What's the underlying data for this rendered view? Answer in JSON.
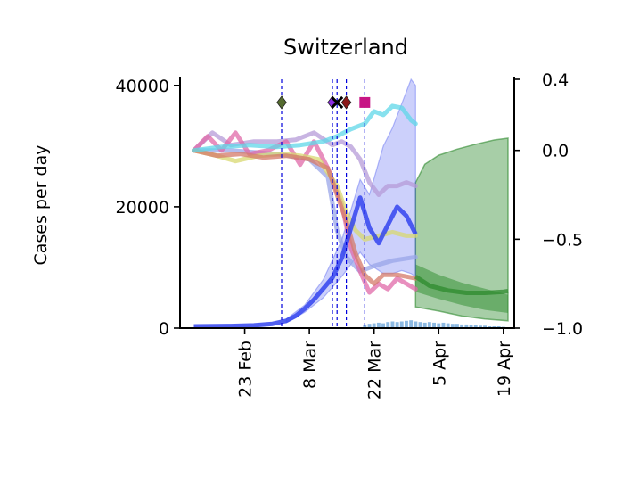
{
  "chart_data": {
    "type": "line",
    "title": "Switzerland",
    "ylabel": "Cases per day",
    "ylim": [
      0,
      41000
    ],
    "y_ticks": [
      0,
      20000,
      40000
    ],
    "y_tick_labels": [
      "0",
      "20000",
      "40000"
    ],
    "y2lim": [
      -1.0,
      0.4
    ],
    "y2_ticks": [
      -1.0,
      -0.5,
      0.0,
      0.4
    ],
    "y2_tick_labels": [
      "−1.0",
      "−0.5",
      "0.0",
      "0.4"
    ],
    "xlim": [
      "2020-02-09",
      "2020-04-20"
    ],
    "x_ticks": [
      "2020-02-23",
      "2020-03-08",
      "2020-03-22",
      "2020-04-05",
      "2020-04-19"
    ],
    "x_tick_labels": [
      "23 Feb",
      "8 Mar",
      "22 Mar",
      "5 Apr",
      "19 Apr"
    ],
    "grid": false,
    "event_lines": [
      "2020-03-02",
      "2020-03-13",
      "2020-03-14",
      "2020-03-16",
      "2020-03-20"
    ],
    "event_markers": [
      {
        "date": "2020-03-02",
        "y": 0.27,
        "shape": "diamond",
        "color": "#556b2f"
      },
      {
        "date": "2020-03-13",
        "y": 0.27,
        "shape": "diamond",
        "color": "#8a2be2"
      },
      {
        "date": "2020-03-14",
        "y": 0.27,
        "shape": "x",
        "color": "#000000"
      },
      {
        "date": "2020-03-16",
        "y": 0.27,
        "shape": "diamond",
        "color": "#8b1a1a"
      },
      {
        "date": "2020-03-20",
        "y": 0.27,
        "shape": "square",
        "color": "#c71585"
      }
    ],
    "cases": {
      "color": "#3344ee",
      "points": [
        [
          "2020-02-12",
          300
        ],
        [
          "2020-02-20",
          350
        ],
        [
          "2020-02-25",
          450
        ],
        [
          "2020-02-29",
          700
        ],
        [
          "2020-03-03",
          1200
        ],
        [
          "2020-03-05",
          2000
        ],
        [
          "2020-03-07",
          3200
        ],
        [
          "2020-03-09",
          4700
        ],
        [
          "2020-03-11",
          6500
        ],
        [
          "2020-03-13",
          8300
        ],
        [
          "2020-03-15",
          11500
        ],
        [
          "2020-03-17",
          16500
        ],
        [
          "2020-03-19",
          21500
        ],
        [
          "2020-03-21",
          16500
        ],
        [
          "2020-03-23",
          14000
        ],
        [
          "2020-03-25",
          17000
        ],
        [
          "2020-03-27",
          20000
        ],
        [
          "2020-03-29",
          18500
        ],
        [
          "2020-03-31",
          15500
        ]
      ],
      "band_upper": [
        [
          "2020-03-03",
          1500
        ],
        [
          "2020-03-07",
          3800
        ],
        [
          "2020-03-11",
          8000
        ],
        [
          "2020-03-15",
          14500
        ],
        [
          "2020-03-19",
          24500
        ],
        [
          "2020-03-21",
          22000
        ],
        [
          "2020-03-24",
          30000
        ],
        [
          "2020-03-26",
          33000
        ],
        [
          "2020-03-28",
          37000
        ],
        [
          "2020-03-30",
          41000
        ],
        [
          "2020-03-31",
          40000
        ]
      ],
      "band_lower": [
        [
          "2020-03-03",
          900
        ],
        [
          "2020-03-07",
          2600
        ],
        [
          "2020-03-11",
          5000
        ],
        [
          "2020-03-15",
          8500
        ],
        [
          "2020-03-19",
          12500
        ],
        [
          "2020-03-21",
          10500
        ],
        [
          "2020-03-24",
          9000
        ],
        [
          "2020-03-26",
          9000
        ],
        [
          "2020-03-28",
          9500
        ],
        [
          "2020-03-30",
          9000
        ],
        [
          "2020-03-31",
          8500
        ]
      ]
    },
    "forecast": {
      "color": "#2e8b2e",
      "median": [
        [
          "2020-03-31",
          8500
        ],
        [
          "2020-04-03",
          7000
        ],
        [
          "2020-04-07",
          6200
        ],
        [
          "2020-04-11",
          5800
        ],
        [
          "2020-04-15",
          5800
        ],
        [
          "2020-04-19",
          6000
        ],
        [
          "2020-04-20",
          6100
        ]
      ],
      "outer_upper": [
        [
          "2020-03-31",
          24000
        ],
        [
          "2020-04-02",
          27000
        ],
        [
          "2020-04-05",
          28500
        ],
        [
          "2020-04-09",
          29500
        ],
        [
          "2020-04-13",
          30300
        ],
        [
          "2020-04-17",
          31000
        ],
        [
          "2020-04-20",
          31300
        ]
      ],
      "outer_lower": [
        [
          "2020-03-31",
          3500
        ],
        [
          "2020-04-05",
          2800
        ],
        [
          "2020-04-10",
          2000
        ],
        [
          "2020-04-15",
          1500
        ],
        [
          "2020-04-20",
          1200
        ]
      ],
      "inner_upper": [
        [
          "2020-03-31",
          10500
        ],
        [
          "2020-04-05",
          8800
        ],
        [
          "2020-04-10",
          7500
        ],
        [
          "2020-04-15",
          6500
        ],
        [
          "2020-04-20",
          5500
        ]
      ],
      "inner_lower": [
        [
          "2020-03-31",
          6000
        ],
        [
          "2020-04-05",
          4800
        ],
        [
          "2020-04-10",
          3800
        ],
        [
          "2020-04-15",
          3000
        ],
        [
          "2020-04-20",
          2500
        ]
      ]
    },
    "daily_bars": {
      "color": "#5b9bd5",
      "start": "2020-03-20",
      "values": [
        600,
        700,
        800,
        900,
        800,
        1000,
        1100,
        1000,
        1100,
        1200,
        1300,
        1100,
        1000,
        900,
        1000,
        900,
        800,
        900,
        800,
        700,
        700,
        600,
        600,
        500,
        500,
        400,
        400,
        300,
        300,
        300,
        200
      ]
    },
    "mobility_series": [
      {
        "color": "#9aa6e8",
        "points": [
          [
            "2020-02-12",
            0.0
          ],
          [
            "2020-02-20",
            0.0
          ],
          [
            "2020-03-01",
            -0.02
          ],
          [
            "2020-03-08",
            -0.05
          ],
          [
            "2020-03-12",
            -0.15
          ],
          [
            "2020-03-14",
            -0.45
          ],
          [
            "2020-03-16",
            -0.6
          ],
          [
            "2020-03-19",
            -0.68
          ],
          [
            "2020-03-22",
            -0.65
          ],
          [
            "2020-03-26",
            -0.62
          ],
          [
            "2020-03-31",
            -0.6
          ]
        ]
      },
      {
        "color": "#b59bd8",
        "points": [
          [
            "2020-02-12",
            0.0
          ],
          [
            "2020-02-16",
            0.1
          ],
          [
            "2020-02-20",
            0.03
          ],
          [
            "2020-02-25",
            0.05
          ],
          [
            "2020-03-01",
            0.05
          ],
          [
            "2020-03-05",
            0.06
          ],
          [
            "2020-03-09",
            0.1
          ],
          [
            "2020-03-13",
            0.03
          ],
          [
            "2020-03-15",
            0.05
          ],
          [
            "2020-03-17",
            0.02
          ],
          [
            "2020-03-19",
            -0.05
          ],
          [
            "2020-03-21",
            -0.18
          ],
          [
            "2020-03-23",
            -0.25
          ],
          [
            "2020-03-25",
            -0.2
          ],
          [
            "2020-03-27",
            -0.2
          ],
          [
            "2020-03-29",
            -0.18
          ],
          [
            "2020-03-31",
            -0.2
          ]
        ]
      },
      {
        "color": "#e06aa8",
        "points": [
          [
            "2020-02-12",
            0.0
          ],
          [
            "2020-02-15",
            0.08
          ],
          [
            "2020-02-18",
            0.0
          ],
          [
            "2020-02-21",
            0.1
          ],
          [
            "2020-02-24",
            -0.02
          ],
          [
            "2020-02-28",
            0.0
          ],
          [
            "2020-03-03",
            0.05
          ],
          [
            "2020-03-06",
            -0.08
          ],
          [
            "2020-03-09",
            0.05
          ],
          [
            "2020-03-12",
            -0.1
          ],
          [
            "2020-03-15",
            -0.3
          ],
          [
            "2020-03-17",
            -0.55
          ],
          [
            "2020-03-19",
            -0.68
          ],
          [
            "2020-03-21",
            -0.8
          ],
          [
            "2020-03-23",
            -0.75
          ],
          [
            "2020-03-25",
            -0.78
          ],
          [
            "2020-03-27",
            -0.72
          ],
          [
            "2020-03-29",
            -0.75
          ],
          [
            "2020-03-31",
            -0.78
          ]
        ]
      },
      {
        "color": "#d8d870",
        "points": [
          [
            "2020-02-12",
            0.0
          ],
          [
            "2020-02-17",
            -0.03
          ],
          [
            "2020-02-21",
            -0.06
          ],
          [
            "2020-02-26",
            -0.03
          ],
          [
            "2020-03-02",
            -0.02
          ],
          [
            "2020-03-06",
            -0.03
          ],
          [
            "2020-03-10",
            -0.05
          ],
          [
            "2020-03-14",
            -0.2
          ],
          [
            "2020-03-16",
            -0.35
          ],
          [
            "2020-03-18",
            -0.45
          ],
          [
            "2020-03-20",
            -0.5
          ],
          [
            "2020-03-23",
            -0.48
          ],
          [
            "2020-03-26",
            -0.46
          ],
          [
            "2020-03-29",
            -0.48
          ],
          [
            "2020-03-31",
            -0.48
          ]
        ]
      },
      {
        "color": "#d47a6a",
        "points": [
          [
            "2020-02-12",
            0.0
          ],
          [
            "2020-02-17",
            -0.03
          ],
          [
            "2020-02-22",
            -0.02
          ],
          [
            "2020-02-27",
            -0.04
          ],
          [
            "2020-03-03",
            -0.03
          ],
          [
            "2020-03-08",
            -0.05
          ],
          [
            "2020-03-12",
            -0.1
          ],
          [
            "2020-03-14",
            -0.25
          ],
          [
            "2020-03-16",
            -0.4
          ],
          [
            "2020-03-18",
            -0.58
          ],
          [
            "2020-03-20",
            -0.7
          ],
          [
            "2020-03-22",
            -0.75
          ],
          [
            "2020-03-24",
            -0.7
          ],
          [
            "2020-03-27",
            -0.7
          ],
          [
            "2020-03-31",
            -0.72
          ]
        ]
      },
      {
        "color": "#5fd7e8",
        "points": [
          [
            "2020-02-12",
            0.0
          ],
          [
            "2020-02-18",
            0.02
          ],
          [
            "2020-02-24",
            0.03
          ],
          [
            "2020-03-01",
            0.02
          ],
          [
            "2020-03-06",
            0.03
          ],
          [
            "2020-03-11",
            0.05
          ],
          [
            "2020-03-14",
            0.08
          ],
          [
            "2020-03-17",
            0.12
          ],
          [
            "2020-03-20",
            0.15
          ],
          [
            "2020-03-22",
            0.22
          ],
          [
            "2020-03-24",
            0.2
          ],
          [
            "2020-03-26",
            0.25
          ],
          [
            "2020-03-28",
            0.24
          ],
          [
            "2020-03-30",
            0.17
          ],
          [
            "2020-03-31",
            0.15
          ]
        ]
      }
    ]
  }
}
